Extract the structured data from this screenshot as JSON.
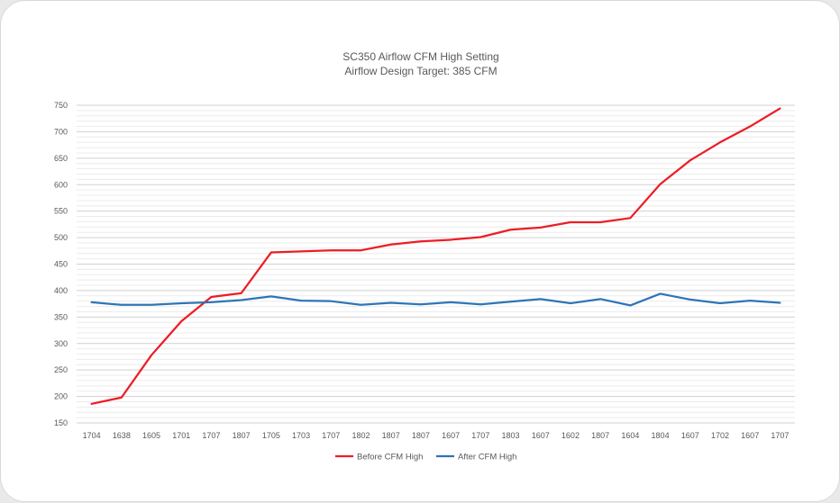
{
  "chart_data": {
    "type": "line",
    "title": "SC350 Airflow CFM High Setting",
    "subtitle": "Airflow Design Target: 385 CFM",
    "xlabel": "",
    "ylabel": "",
    "categories": [
      "1704",
      "1638",
      "1605",
      "1701",
      "1707",
      "1807",
      "1705",
      "1703",
      "1707",
      "1802",
      "1807",
      "1807",
      "1607",
      "1707",
      "1803",
      "1607",
      "1602",
      "1807",
      "1604",
      "1804",
      "1607",
      "1702",
      "1607",
      "1707"
    ],
    "ylim": [
      150,
      750
    ],
    "yticks": [
      150,
      200,
      250,
      300,
      350,
      400,
      450,
      500,
      550,
      600,
      650,
      700,
      750
    ],
    "minor_grid_step": 10,
    "grid": true,
    "legend_position": "bottom",
    "series": [
      {
        "name": "Before CFM High",
        "color": "#ee1c25",
        "values": [
          186,
          198,
          278,
          342,
          388,
          395,
          472,
          474,
          476,
          476,
          487,
          493,
          496,
          501,
          515,
          519,
          529,
          529,
          537,
          601,
          646,
          680,
          710,
          744
        ]
      },
      {
        "name": "After CFM High",
        "color": "#2e75b6",
        "values": [
          378,
          373,
          373,
          376,
          378,
          382,
          389,
          381,
          380,
          373,
          377,
          374,
          378,
          374,
          379,
          384,
          376,
          384,
          372,
          394,
          383,
          376,
          381,
          377
        ]
      }
    ]
  }
}
